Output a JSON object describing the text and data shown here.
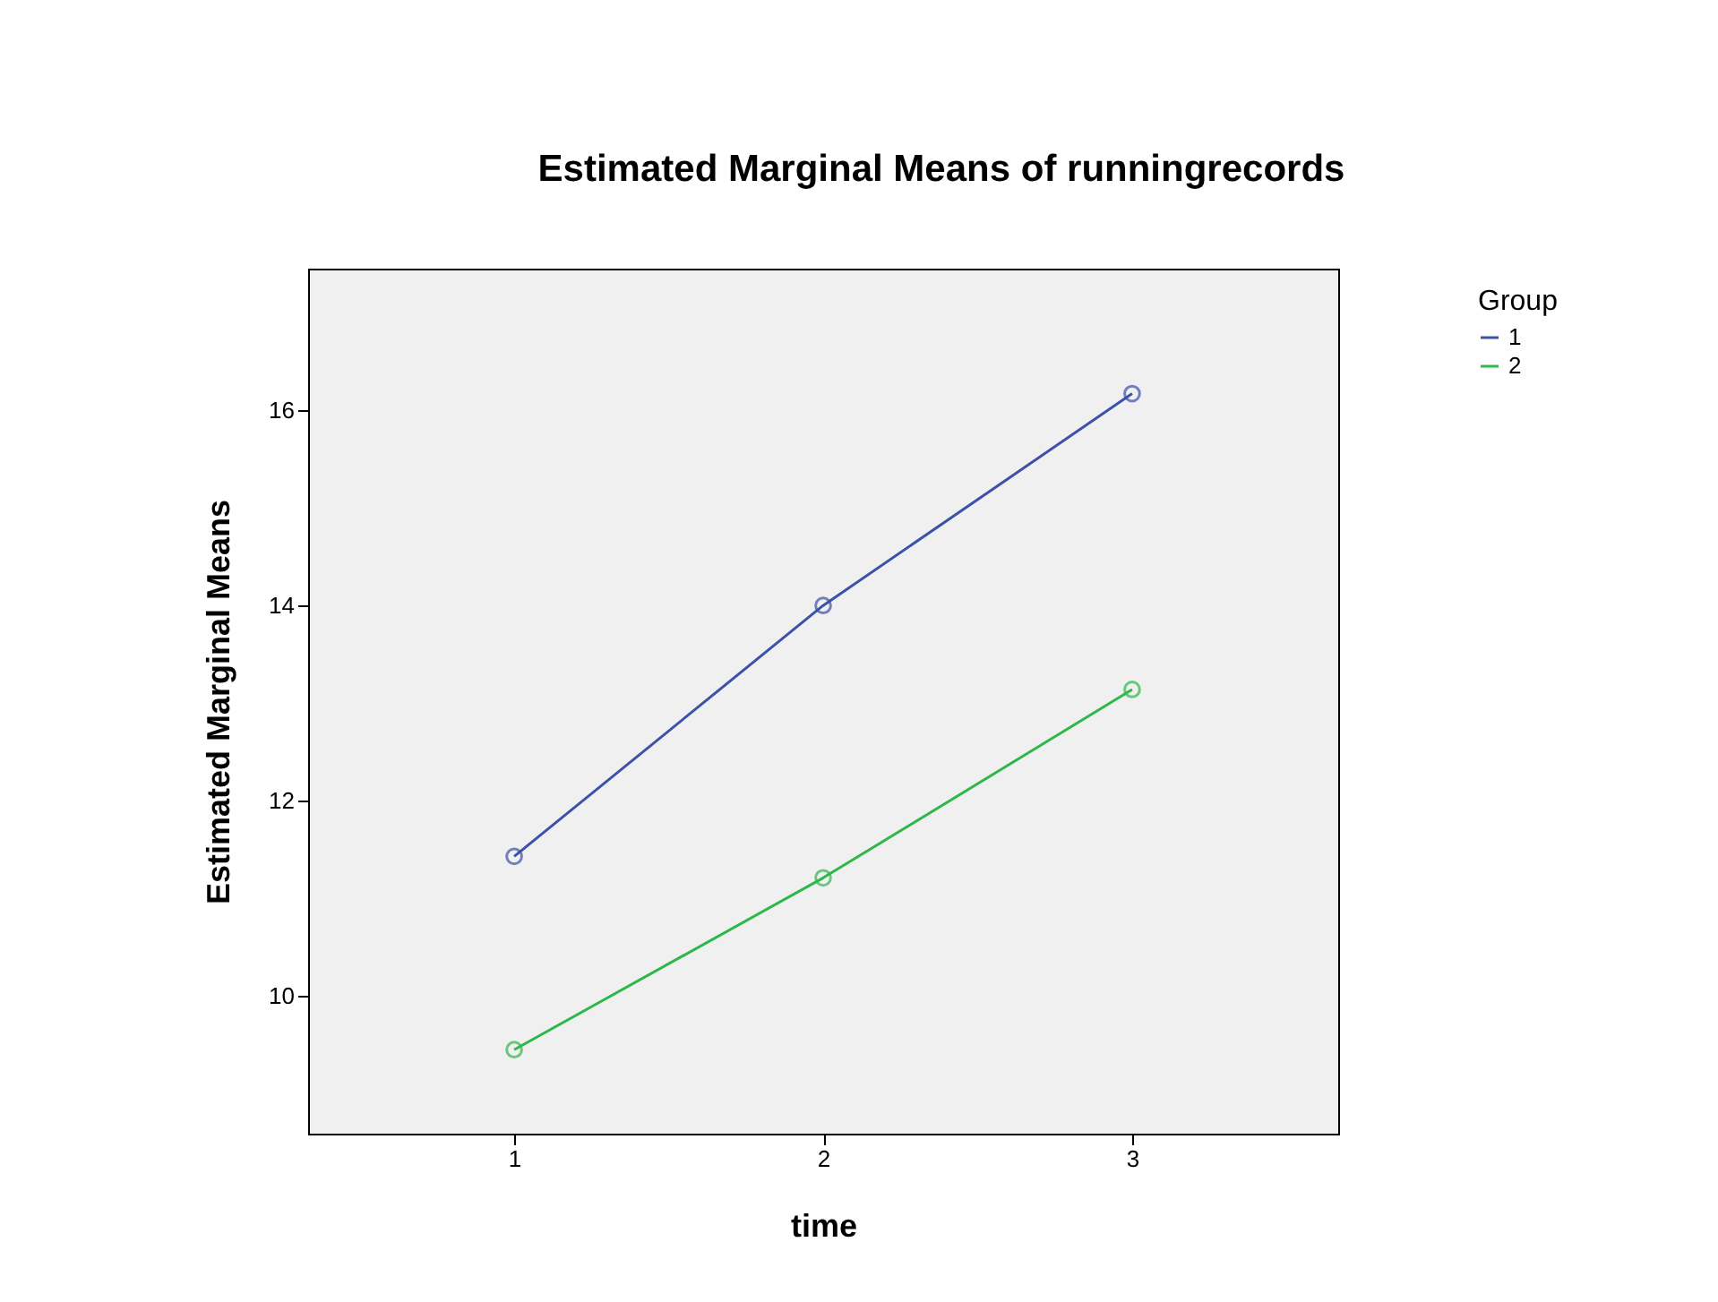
{
  "chart_data": {
    "type": "line",
    "title": "Estimated Marginal Means of runningrecords",
    "xlabel": "time",
    "ylabel": "Estimated Marginal Means",
    "legend_title": "Group",
    "categories": [
      "1",
      "2",
      "3"
    ],
    "series": [
      {
        "name": "1",
        "color": "#3c52a8",
        "values": [
          11.43,
          14.0,
          16.17
        ]
      },
      {
        "name": "2",
        "color": "#2eb84a",
        "values": [
          9.45,
          11.21,
          13.14
        ]
      }
    ],
    "ylim": [
      8.59,
      17.45
    ],
    "yticks": [
      10,
      12,
      14,
      16
    ],
    "grid": false,
    "legend": "top right",
    "marker": "circle",
    "line_style": "solid"
  }
}
